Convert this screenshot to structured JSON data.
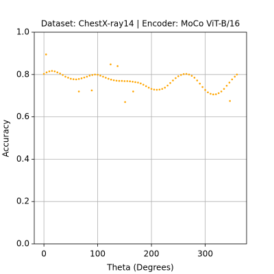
{
  "chart_data": {
    "type": "scatter",
    "title": "Dataset: ChestX-ray14 | Encoder: MoCo ViT-B/16",
    "xlabel": "Theta (Degrees)",
    "ylabel": "Accuracy",
    "color": "orange",
    "x": [
      0,
      5,
      10,
      15,
      20,
      25,
      30,
      35,
      40,
      45,
      50,
      55,
      60,
      65,
      70,
      75,
      80,
      85,
      90,
      95,
      100,
      105,
      110,
      115,
      120,
      125,
      130,
      135,
      140,
      145,
      150,
      155,
      160,
      165,
      170,
      175,
      180,
      185,
      190,
      195,
      200,
      205,
      210,
      215,
      220,
      225,
      230,
      235,
      240,
      245,
      250,
      255,
      260,
      265,
      270,
      275,
      280,
      285,
      290,
      295,
      300,
      305,
      310,
      315,
      320,
      325,
      330,
      335,
      340,
      345,
      350,
      355,
      359,
      4,
      65,
      89,
      124,
      137,
      151,
      166,
      346
    ],
    "values": [
      0.803,
      0.81,
      0.815,
      0.817,
      0.815,
      0.81,
      0.805,
      0.798,
      0.79,
      0.785,
      0.78,
      0.778,
      0.777,
      0.779,
      0.782,
      0.786,
      0.79,
      0.795,
      0.798,
      0.8,
      0.799,
      0.795,
      0.79,
      0.785,
      0.78,
      0.776,
      0.773,
      0.771,
      0.77,
      0.77,
      0.769,
      0.769,
      0.768,
      0.766,
      0.764,
      0.762,
      0.758,
      0.752,
      0.745,
      0.738,
      0.732,
      0.729,
      0.728,
      0.729,
      0.732,
      0.738,
      0.748,
      0.76,
      0.772,
      0.783,
      0.792,
      0.798,
      0.802,
      0.803,
      0.8,
      0.794,
      0.785,
      0.772,
      0.757,
      0.741,
      0.727,
      0.716,
      0.709,
      0.706,
      0.707,
      0.712,
      0.72,
      0.732,
      0.747,
      0.762,
      0.777,
      0.79,
      0.8,
      0.895,
      0.72,
      0.725,
      0.848,
      0.84,
      0.67,
      0.72,
      0.675
    ],
    "xlim": [
      -18,
      377
    ],
    "xticks": [
      0,
      100,
      200,
      300
    ],
    "ylim": [
      0,
      1
    ],
    "yticks": [
      {
        "value": 0,
        "label": "0.0"
      },
      {
        "value": 0.2,
        "label": "0.2"
      },
      {
        "value": 0.4,
        "label": "0.4"
      },
      {
        "value": 0.6,
        "label": "0.6"
      },
      {
        "value": 0.8,
        "label": "0.8"
      },
      {
        "value": 1,
        "label": "1.0"
      }
    ],
    "grid": true
  }
}
